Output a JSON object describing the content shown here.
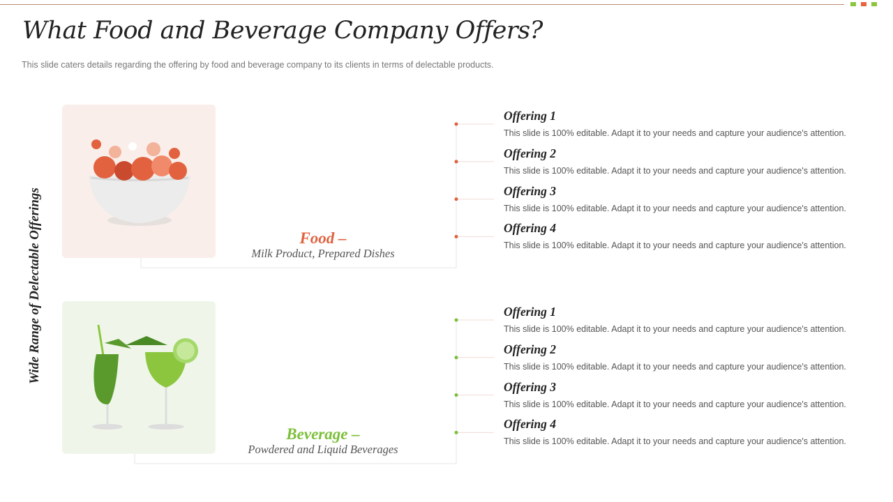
{
  "header": {
    "title": "What Food and Beverage Company Offers?",
    "subtitle": "This slide caters details regarding the offering  by food and beverage  company to its clients in terms of delectable products."
  },
  "side_label": "Wide Range of Delectable Offerings",
  "sections": [
    {
      "heading": "Food –",
      "caption": "Milk Product, Prepared Dishes",
      "offerings": [
        {
          "title": "Offering 1",
          "text": "This slide is 100% editable. Adapt it to your needs and capture your audience's attention."
        },
        {
          "title": "Offering 2",
          "text": "This slide is 100% editable. Adapt it to your needs and capture your audience's attention."
        },
        {
          "title": "Offering 3",
          "text": "This slide is 100% editable. Adapt it to your needs and capture your audience's attention."
        },
        {
          "title": "Offering 4",
          "text": "This slide is 100% editable. Adapt it to your needs and capture your audience's attention."
        }
      ]
    },
    {
      "heading": "Beverage –",
      "caption": "Powdered and Liquid Beverages",
      "offerings": [
        {
          "title": "Offering 1",
          "text": "This slide is 100% editable. Adapt it to your needs and capture your audience's attention."
        },
        {
          "title": "Offering 2",
          "text": "This slide is 100% editable. Adapt it to your needs and capture your audience's attention."
        },
        {
          "title": "Offering 3",
          "text": "This slide is 100% editable. Adapt it to your needs and capture your audience's attention."
        },
        {
          "title": "Offering 4",
          "text": "This slide is 100% editable. Adapt it to your needs and capture your audience's attention."
        }
      ]
    }
  ]
}
